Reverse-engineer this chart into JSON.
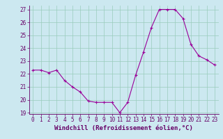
{
  "x": [
    0,
    1,
    2,
    3,
    4,
    5,
    6,
    7,
    8,
    9,
    10,
    11,
    12,
    13,
    14,
    15,
    16,
    17,
    18,
    19,
    20,
    21,
    22,
    23
  ],
  "y": [
    22.3,
    22.3,
    22.1,
    22.3,
    21.5,
    21.0,
    20.6,
    19.9,
    19.8,
    19.8,
    19.8,
    19.0,
    19.8,
    21.9,
    23.7,
    25.6,
    27.0,
    27.0,
    27.0,
    26.3,
    24.3,
    23.4,
    23.1,
    22.7
  ],
  "line_color": "#990099",
  "marker": "+",
  "marker_size": 3,
  "bg_color": "#cce8f0",
  "grid_color": "#99ccbb",
  "xlabel": "Windchill (Refroidissement éolien,°C)",
  "xlim": [
    -0.5,
    23.5
  ],
  "ylim_min": 19,
  "ylim_max": 27,
  "yticks": [
    19,
    20,
    21,
    22,
    23,
    24,
    25,
    26,
    27
  ],
  "xticks": [
    0,
    1,
    2,
    3,
    4,
    5,
    6,
    7,
    8,
    9,
    10,
    11,
    12,
    13,
    14,
    15,
    16,
    17,
    18,
    19,
    20,
    21,
    22,
    23
  ],
  "tick_fontsize": 5.5,
  "xlabel_fontsize": 6.5,
  "label_color": "#660066",
  "linewidth": 0.8,
  "markeredgewidth": 0.8
}
